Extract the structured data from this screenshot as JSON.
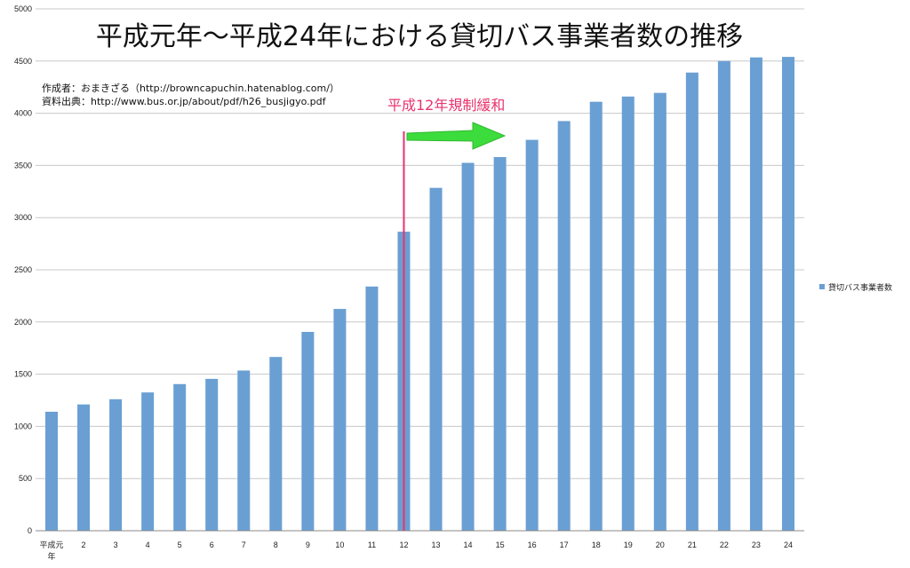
{
  "chart_data": {
    "type": "bar",
    "title": "平成元年〜平成24年における貸切バス事業者数の推移",
    "categories": [
      "平成元年",
      "2",
      "3",
      "4",
      "5",
      "6",
      "7",
      "8",
      "9",
      "10",
      "11",
      "12",
      "13",
      "14",
      "15",
      "16",
      "17",
      "18",
      "19",
      "20",
      "21",
      "22",
      "23",
      "24"
    ],
    "series": [
      {
        "name": "貸切バス事業者数",
        "color": "#6a9fd3",
        "values": [
          1140,
          1210,
          1260,
          1325,
          1405,
          1455,
          1535,
          1665,
          1905,
          2125,
          2340,
          2865,
          3285,
          3525,
          3580,
          3745,
          3925,
          4110,
          4160,
          4195,
          4390,
          4500,
          4535,
          4540
        ]
      }
    ],
    "ylim": [
      0,
      5000
    ],
    "yticks": [
      0,
      500,
      1000,
      1500,
      2000,
      2500,
      3000,
      3500,
      4000,
      4500,
      5000
    ],
    "grid": true,
    "legend_position": "right",
    "xlabel": "",
    "ylabel": "",
    "credits": [
      "作成者：おまきざる（http://browncapuchin.hatenablog.com/）",
      "資料出典：http://www.bus.or.jp/about/pdf/h26_busjigyo.pdf"
    ],
    "annotation": {
      "label": "平成12年規制緩和",
      "at_category": "12",
      "line_color": "#e8336e",
      "arrow_color": "#3ddc3d"
    }
  }
}
